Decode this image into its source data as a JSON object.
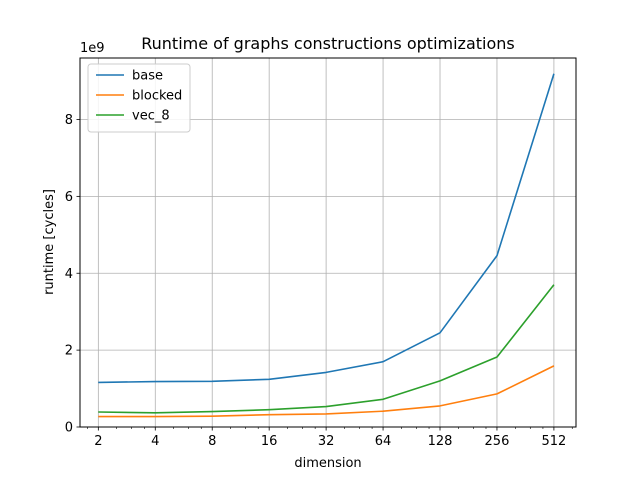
{
  "chart_data": {
    "type": "line",
    "title": "Runtime of graphs constructions optimizations",
    "xlabel": "dimension",
    "ylabel": "runtime [cycles]",
    "y_offset_label": "1e9",
    "x_scale": "log2",
    "x": [
      2,
      4,
      8,
      16,
      32,
      64,
      128,
      256,
      512
    ],
    "x_tick_labels": [
      "2",
      "4",
      "8",
      "16",
      "32",
      "64",
      "128",
      "256",
      "512"
    ],
    "y_ticks": [
      0,
      2,
      4,
      6,
      8
    ],
    "y_tick_labels": [
      "0",
      "2",
      "4",
      "6",
      "8"
    ],
    "y_unit_multiplier": 1000000000,
    "xlim": [
      1.6,
      670
    ],
    "ylim": [
      0,
      9.6
    ],
    "grid": true,
    "legend_position": "top-left",
    "series": [
      {
        "name": "base",
        "color": "#1f77b4",
        "values": [
          1.16,
          1.18,
          1.19,
          1.24,
          1.42,
          1.7,
          2.45,
          4.46,
          9.19
        ]
      },
      {
        "name": "blocked",
        "color": "#ff7f0e",
        "values": [
          0.27,
          0.27,
          0.28,
          0.32,
          0.34,
          0.41,
          0.55,
          0.86,
          1.59
        ]
      },
      {
        "name": "vec_8",
        "color": "#2ca02c",
        "values": [
          0.39,
          0.37,
          0.4,
          0.45,
          0.53,
          0.72,
          1.2,
          1.82,
          3.7
        ]
      }
    ]
  }
}
